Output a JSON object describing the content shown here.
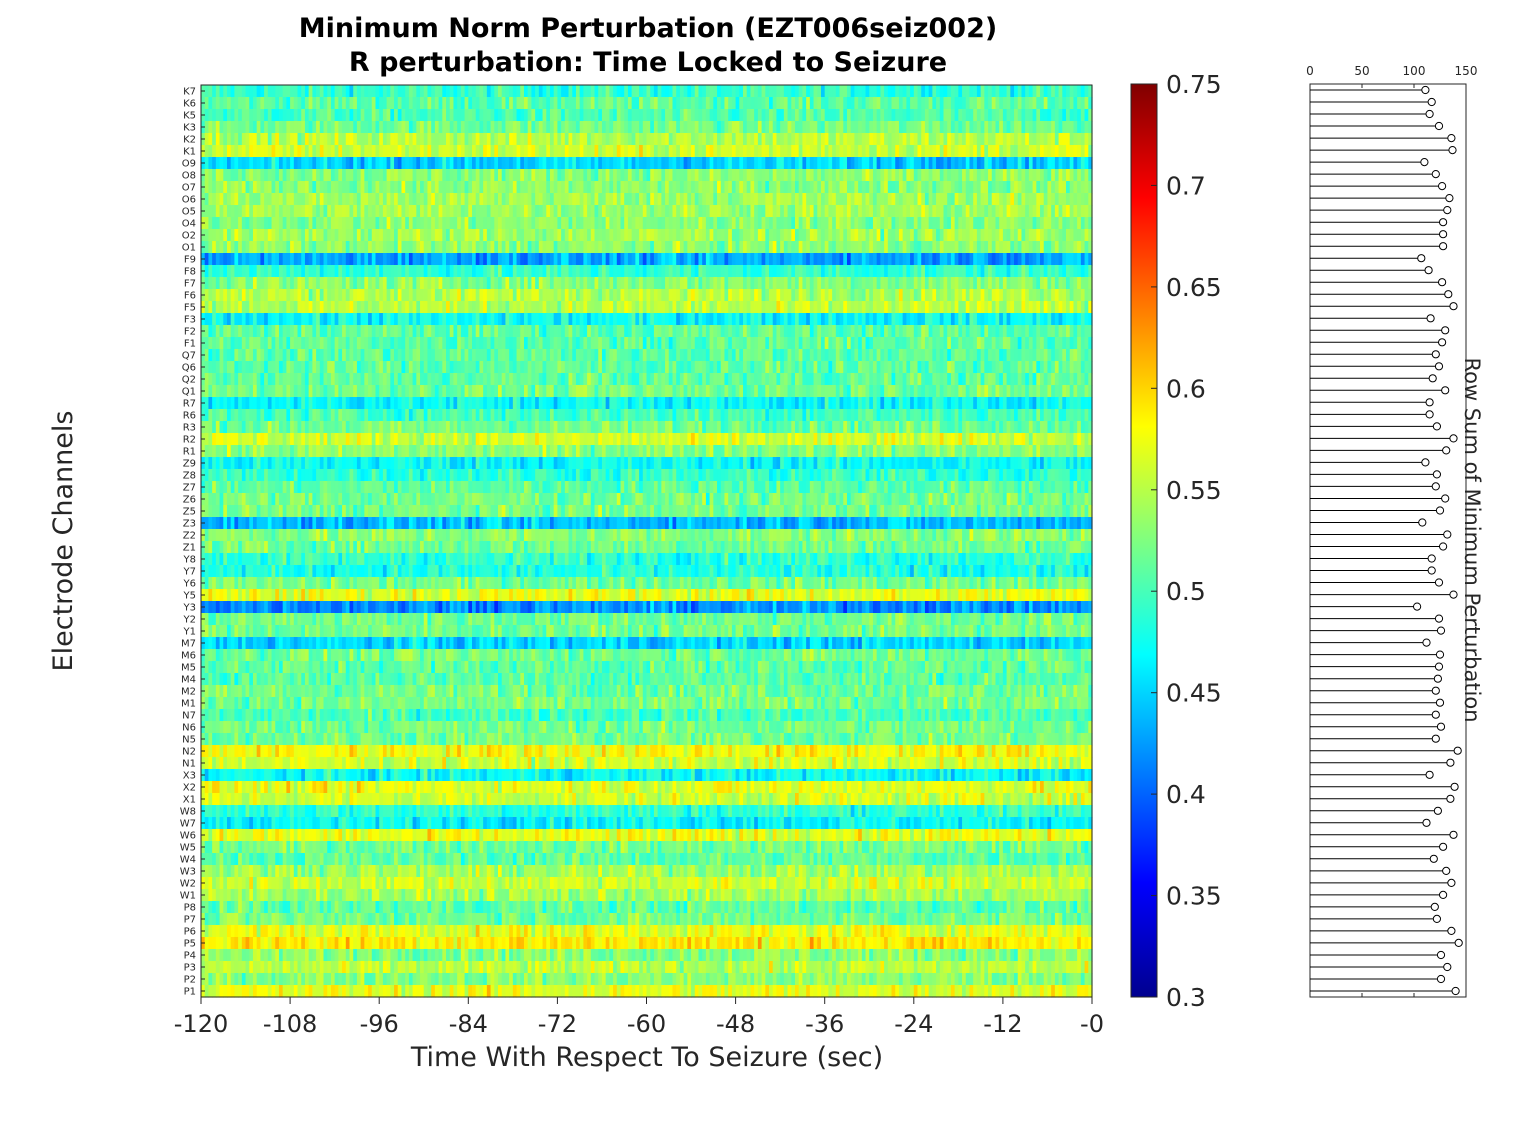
{
  "chart_data": [
    {
      "type": "heatmap",
      "title": [
        "Minimum Norm Perturbation (EZT006seiz002)",
        "R perturbation:  Time Locked to Seizure"
      ],
      "xlabel": "Time With Respect To Seizure (sec)",
      "ylabel": "Electrode Channels",
      "xlim": [
        -120,
        0
      ],
      "xticks": [
        "-120",
        "-108",
        "-96",
        "-84",
        "-72",
        "-60",
        "-48",
        "-36",
        "-24",
        "-12",
        "-0"
      ],
      "xtick_values": [
        -120,
        -108,
        -96,
        -84,
        -72,
        -60,
        -48,
        -36,
        -24,
        -12,
        0
      ],
      "channels": [
        "K7",
        "K6",
        "K5",
        "K3",
        "K2",
        "K1",
        "O9",
        "O8",
        "O7",
        "O6",
        "O5",
        "O4",
        "O2",
        "O1",
        "F9",
        "F8",
        "F7",
        "F6",
        "F5",
        "F3",
        "F2",
        "F1",
        "Q7",
        "Q6",
        "Q2",
        "Q1",
        "R7",
        "R6",
        "R3",
        "R2",
        "R1",
        "Z9",
        "Z8",
        "Z7",
        "Z6",
        "Z5",
        "Z3",
        "Z2",
        "Z1",
        "Y8",
        "Y7",
        "Y6",
        "Y5",
        "Y3",
        "Y2",
        "Y1",
        "M7",
        "M6",
        "M5",
        "M4",
        "M2",
        "M1",
        "N7",
        "N6",
        "N5",
        "N2",
        "N1",
        "X3",
        "X2",
        "X1",
        "W8",
        "W7",
        "W6",
        "W5",
        "W4",
        "W3",
        "W2",
        "W1",
        "P8",
        "P7",
        "P6",
        "P5",
        "P4",
        "P3",
        "P2",
        "P1"
      ],
      "row_mean_values": [
        0.49,
        0.51,
        0.5,
        0.52,
        0.55,
        0.56,
        0.45,
        0.53,
        0.53,
        0.54,
        0.54,
        0.53,
        0.54,
        0.53,
        0.43,
        0.49,
        0.53,
        0.55,
        0.55,
        0.47,
        0.51,
        0.51,
        0.51,
        0.51,
        0.51,
        0.52,
        0.47,
        0.5,
        0.52,
        0.56,
        0.53,
        0.47,
        0.49,
        0.51,
        0.52,
        0.52,
        0.44,
        0.53,
        0.52,
        0.49,
        0.48,
        0.52,
        0.57,
        0.42,
        0.52,
        0.52,
        0.45,
        0.52,
        0.51,
        0.51,
        0.52,
        0.52,
        0.5,
        0.52,
        0.52,
        0.58,
        0.56,
        0.47,
        0.57,
        0.56,
        0.49,
        0.47,
        0.57,
        0.52,
        0.51,
        0.54,
        0.56,
        0.54,
        0.51,
        0.52,
        0.57,
        0.59,
        0.53,
        0.55,
        0.53,
        0.57
      ],
      "colorbar": {
        "min": 0.3,
        "max": 0.75,
        "ticks": [
          "0.3",
          "0.35",
          "0.4",
          "0.45",
          "0.5",
          "0.55",
          "0.6",
          "0.65",
          "0.7",
          "0.75"
        ],
        "colormap": "jet"
      },
      "n_time_bins": 240
    },
    {
      "type": "scatter",
      "style": "horizontal stem",
      "ylabel": "Row Sum of Minimum Perturbation",
      "xlim": [
        0,
        150
      ],
      "xticks": [
        "0",
        "50",
        "100",
        "150"
      ],
      "xtick_values": [
        0,
        50,
        100,
        150
      ],
      "values": [
        111,
        117,
        115,
        124,
        136,
        137,
        110,
        121,
        127,
        134,
        132,
        128,
        128,
        128,
        107,
        114,
        127,
        133,
        138,
        116,
        130,
        127,
        121,
        124,
        118,
        130,
        115,
        115,
        122,
        138,
        131,
        111,
        122,
        121,
        130,
        125,
        108,
        132,
        128,
        117,
        117,
        124,
        138,
        103,
        124,
        126,
        112,
        125,
        124,
        123,
        121,
        125,
        121,
        126,
        121,
        142,
        135,
        115,
        139,
        135,
        123,
        112,
        138,
        128,
        119,
        131,
        136,
        128,
        120,
        122,
        136,
        143,
        126,
        132,
        126,
        140
      ]
    }
  ]
}
